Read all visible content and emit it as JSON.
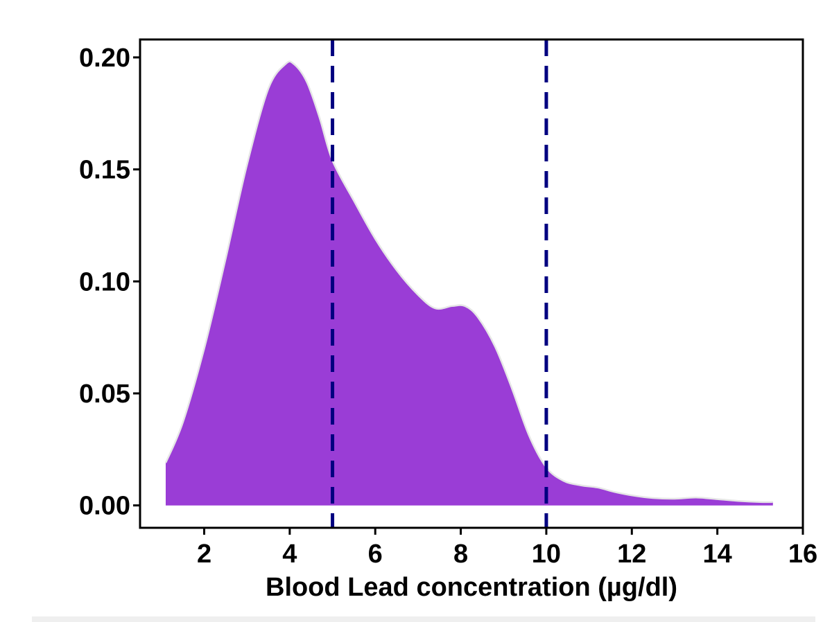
{
  "chart_data": {
    "type": "area",
    "title": "",
    "xlabel": "Blood Lead concentration (µg/dl)",
    "ylabel": "",
    "xlim": [
      0.5,
      16
    ],
    "ylim": [
      -0.01,
      0.208
    ],
    "x_ticks": [
      2,
      4,
      6,
      8,
      10,
      12,
      14,
      16
    ],
    "x_tick_labels": [
      "2",
      "4",
      "6",
      "8",
      "10",
      "12",
      "14",
      "16"
    ],
    "y_ticks": [
      0.0,
      0.05,
      0.1,
      0.15,
      0.2
    ],
    "y_tick_labels": [
      "0.00",
      "0.05",
      "0.10",
      "0.15",
      "0.20"
    ],
    "grid": false,
    "fill_color": "#9a3dd6",
    "outline_color": "#e6e6e6",
    "reference_line_color": "#000080",
    "reference_lines": [
      5,
      10
    ],
    "series": [
      {
        "x": [
          1.1,
          1.5,
          2.0,
          2.5,
          3.0,
          3.5,
          3.9,
          4.1,
          4.4,
          4.7,
          5.0,
          5.5,
          6.0,
          6.5,
          7.0,
          7.4,
          7.8,
          8.1,
          8.4,
          8.8,
          9.2,
          9.6,
          10.0,
          10.4,
          10.8,
          11.2,
          11.6,
          12.0,
          12.5,
          13.0,
          13.5,
          14.0,
          14.5,
          15.0,
          15.3
        ],
        "y": [
          0.019,
          0.037,
          0.07,
          0.11,
          0.152,
          0.186,
          0.197,
          0.197,
          0.189,
          0.173,
          0.154,
          0.136,
          0.119,
          0.105,
          0.094,
          0.088,
          0.089,
          0.089,
          0.084,
          0.071,
          0.052,
          0.031,
          0.017,
          0.011,
          0.009,
          0.008,
          0.006,
          0.0045,
          0.0033,
          0.003,
          0.0035,
          0.0028,
          0.002,
          0.0015,
          0.0015
        ]
      }
    ]
  }
}
